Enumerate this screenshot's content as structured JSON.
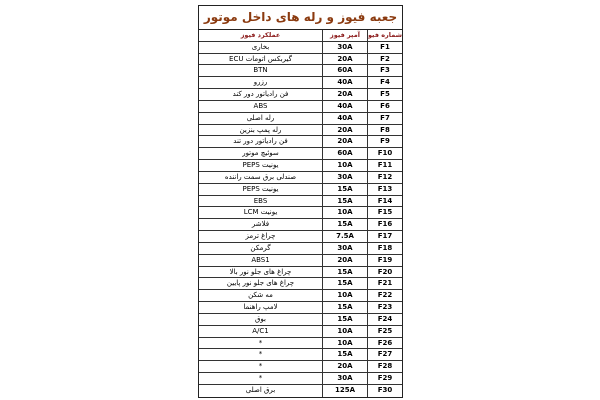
{
  "title": "جعبه فیوز و رله های داخل موتور",
  "headers": {
    "function": "عملکرد فیوز",
    "amp": "آمپر فیوز",
    "number": "شماره فیوز"
  },
  "colors": {
    "title": "#8b3a0f",
    "header": "#8b1a1a"
  },
  "rows": [
    {
      "number": "F1",
      "amp": "30A",
      "function": "بخاری"
    },
    {
      "number": "F2",
      "amp": "20A",
      "function": "گیربکس اتومات ECU"
    },
    {
      "number": "F3",
      "amp": "60A",
      "function": "BTN"
    },
    {
      "number": "F4",
      "amp": "40A",
      "function": "رزرو"
    },
    {
      "number": "F5",
      "amp": "20A",
      "function": "فن رادیاتور دور کند"
    },
    {
      "number": "F6",
      "amp": "40A",
      "function": "ABS"
    },
    {
      "number": "F7",
      "amp": "40A",
      "function": "رله اصلی"
    },
    {
      "number": "F8",
      "amp": "20A",
      "function": "رله پمپ بنزین"
    },
    {
      "number": "F9",
      "amp": "20A",
      "function": "فن رادیاتور دور تند"
    },
    {
      "number": "F10",
      "amp": "60A",
      "function": "سوئیچ موتور"
    },
    {
      "number": "F11",
      "amp": "10A",
      "function": "یونیت PEPS"
    },
    {
      "number": "F12",
      "amp": "30A",
      "function": "صندلی برق سمت راننده"
    },
    {
      "number": "F13",
      "amp": "15A",
      "function": "یونیت PEPS"
    },
    {
      "number": "F14",
      "amp": "15A",
      "function": "EBS"
    },
    {
      "number": "F15",
      "amp": "10A",
      "function": "یونیت LCM"
    },
    {
      "number": "F16",
      "amp": "15A",
      "function": "فلاشر"
    },
    {
      "number": "F17",
      "amp": "7.5A",
      "function": "چراغ ترمز"
    },
    {
      "number": "F18",
      "amp": "30A",
      "function": "گرمکن"
    },
    {
      "number": "F19",
      "amp": "20A",
      "function": "ABS1"
    },
    {
      "number": "F20",
      "amp": "15A",
      "function": "چراغ های جلو نور بالا"
    },
    {
      "number": "F21",
      "amp": "15A",
      "function": "چراغ های جلو نور پایین"
    },
    {
      "number": "F22",
      "amp": "10A",
      "function": "مه شکن"
    },
    {
      "number": "F23",
      "amp": "15A",
      "function": "لامپ راهنما"
    },
    {
      "number": "F24",
      "amp": "15A",
      "function": "بوق"
    },
    {
      "number": "F25",
      "amp": "10A",
      "function": "A/C1"
    },
    {
      "number": "F26",
      "amp": "10A",
      "function": "*"
    },
    {
      "number": "F27",
      "amp": "15A",
      "function": "*"
    },
    {
      "number": "F28",
      "amp": "20A",
      "function": "*"
    },
    {
      "number": "F29",
      "amp": "30A",
      "function": "*"
    },
    {
      "number": "F30",
      "amp": "125A",
      "function": "برق اصلی"
    }
  ]
}
